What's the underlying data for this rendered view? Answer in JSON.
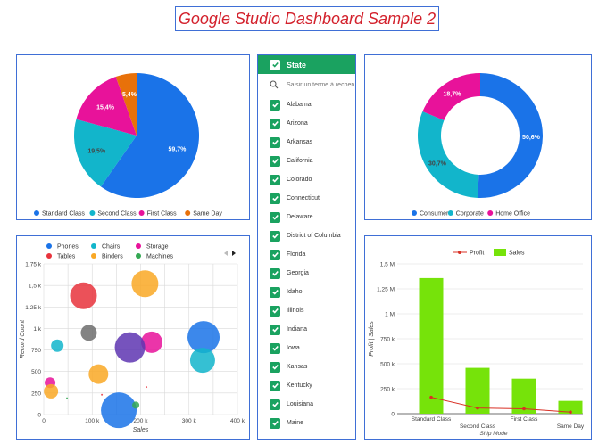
{
  "page": {
    "title": "Google Studio Dashboard Sample 2"
  },
  "colors": {
    "blue": "#1a73e8",
    "teal": "#12b5cb",
    "pink": "#e8129a",
    "orange": "#e8710a",
    "green_filter": "#1aa260",
    "bar_green": "#76e30a",
    "profit_red": "#d93025",
    "border_blue": "#3f6fd6"
  },
  "filter": {
    "title": "State",
    "search_placeholder": "Saisir un terme à rechercher",
    "search_icon": "search-icon",
    "states": [
      "Alabama",
      "Arizona",
      "Arkansas",
      "California",
      "Colorado",
      "Connecticut",
      "Delaware",
      "District of Columbia",
      "Florida",
      "Georgia",
      "Idaho",
      "Illinois",
      "Indiana",
      "Iowa",
      "Kansas",
      "Kentucky",
      "Louisiana",
      "Maine"
    ]
  },
  "chart_data": [
    {
      "type": "pie",
      "id": "ship-mode-pie",
      "slices": [
        {
          "label": "Standard Class",
          "value": 59.7,
          "display": "59,7%",
          "color": "#1a73e8"
        },
        {
          "label": "Second Class",
          "value": 19.5,
          "display": "19,5%",
          "color": "#12b5cb"
        },
        {
          "label": "First Class",
          "value": 15.4,
          "display": "15,4%",
          "color": "#e8129a"
        },
        {
          "label": "Same Day",
          "value": 5.4,
          "display": "5,4%",
          "color": "#e8710a"
        }
      ],
      "legend": "bottom"
    },
    {
      "type": "pie",
      "id": "segment-donut",
      "donut": true,
      "slices": [
        {
          "label": "Consumer",
          "value": 50.6,
          "display": "50,6%",
          "color": "#1a73e8"
        },
        {
          "label": "Corporate",
          "value": 30.7,
          "display": "30,7%",
          "color": "#12b5cb"
        },
        {
          "label": "Home Office",
          "value": 18.7,
          "display": "18,7%",
          "color": "#e8129a"
        }
      ],
      "legend": "bottom"
    },
    {
      "type": "scatter",
      "id": "category-bubble",
      "xlabel": "Sales",
      "ylabel": "Record Count",
      "xlim": [
        0,
        400000
      ],
      "ylim": [
        0,
        1750
      ],
      "xticks": [
        0,
        100000,
        200000,
        300000,
        400000
      ],
      "xtick_labels": [
        "0",
        "100 k",
        "200 k",
        "300 k",
        "400 k"
      ],
      "yticks": [
        0,
        250,
        500,
        750,
        1000,
        1250,
        1500,
        1750
      ],
      "ytick_labels": [
        "0",
        "250",
        "500",
        "750",
        "1 k",
        "1,25 k",
        "1,5 k",
        "1,75 k"
      ],
      "grid": true,
      "legend": "top",
      "series": [
        {
          "name": "Phones",
          "color": "#1a73e8",
          "points": [
            {
              "x": 330000,
              "y": 900,
              "r": 18
            },
            {
              "x": 155000,
              "y": 50,
              "r": 20
            }
          ]
        },
        {
          "name": "Chairs",
          "color": "#12b5cb",
          "points": [
            {
              "x": 328000,
              "y": 630,
              "r": 14
            },
            {
              "x": 28000,
              "y": 800,
              "r": 7
            }
          ]
        },
        {
          "name": "Storage",
          "color": "#e8129a",
          "points": [
            {
              "x": 223000,
              "y": 840,
              "r": 12
            },
            {
              "x": 13000,
              "y": 370,
              "r": 6
            }
          ]
        },
        {
          "name": "Tables",
          "color": "#e8333c",
          "points": [
            {
              "x": 82000,
              "y": 1380,
              "r": 15
            },
            {
              "x": 120000,
              "y": 230,
              "r": 1
            },
            {
              "x": 212000,
              "y": 320,
              "r": 1
            }
          ]
        },
        {
          "name": "Binders",
          "color": "#f9a825",
          "points": [
            {
              "x": 209000,
              "y": 1520,
              "r": 15
            },
            {
              "x": 113000,
              "y": 470,
              "r": 11
            },
            {
              "x": 15000,
              "y": 270,
              "r": 8
            }
          ]
        },
        {
          "name": "Machines",
          "color": "#34a853",
          "points": [
            {
              "x": 190000,
              "y": 110,
              "r": 4
            },
            {
              "x": 48000,
              "y": 190,
              "r": 1
            }
          ]
        },
        {
          "name": "",
          "color": "#6d6d6d",
          "points": [
            {
              "x": 93000,
              "y": 950,
              "r": 9
            }
          ]
        },
        {
          "name": "",
          "color": "#5e35b1",
          "points": [
            {
              "x": 178000,
              "y": 780,
              "r": 17
            }
          ]
        }
      ]
    },
    {
      "type": "bar",
      "id": "ship-mode-bar",
      "categories": [
        "Standard Class",
        "Second Class",
        "First Class",
        "Same Day"
      ],
      "series": [
        {
          "name": "Sales",
          "kind": "bar",
          "color": "#76e30a",
          "values": [
            1358000,
            459000,
            351000,
            128000
          ]
        },
        {
          "name": "Profit",
          "kind": "line",
          "color": "#d93025",
          "values": [
            164000,
            57000,
            49000,
            16000
          ]
        }
      ],
      "xlabel": "Ship Mode",
      "ylabel": "Profit | Sales",
      "ylim": [
        0,
        1500000
      ],
      "yticks": [
        0,
        250000,
        500000,
        750000,
        1000000,
        1250000,
        1500000
      ],
      "ytick_labels": [
        "0",
        "250 k",
        "500 k",
        "750 k",
        "1 M",
        "1,25 M",
        "1,5 M"
      ],
      "legend": "top"
    }
  ]
}
